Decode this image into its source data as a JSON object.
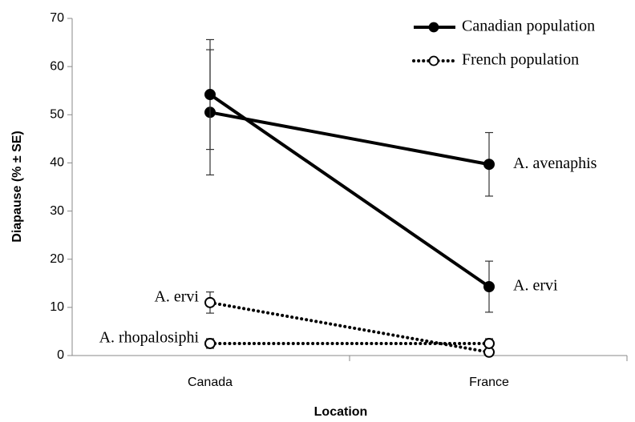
{
  "chart_data": {
    "type": "line",
    "x_label": "Location",
    "y_label": "Diapause (% ± SE)",
    "categories": [
      "Canada",
      "France"
    ],
    "ylim": [
      0,
      70
    ],
    "yticks": [
      0,
      10,
      20,
      30,
      40,
      50,
      60,
      70
    ],
    "groups": [
      {
        "name": "Canadian population",
        "color": "#000000",
        "line_style": "solid",
        "marker_fill": "filled",
        "label_side": "right",
        "series": [
          {
            "name": "A. avenaphis",
            "values": [
              50.5,
              39.7
            ],
            "errors": [
              13,
              6.6
            ]
          },
          {
            "name": "A. ervi",
            "values": [
              54.2,
              14.3
            ],
            "errors": [
              11.4,
              5.3
            ]
          }
        ]
      },
      {
        "name": "French population",
        "color": "#000000",
        "line_style": "dotted",
        "marker_fill": "open",
        "label_side": "left",
        "series": [
          {
            "name": "A. ervi",
            "values": [
              11,
              0.7
            ],
            "errors": [
              2.2,
              0.5
            ]
          },
          {
            "name": "A. rhopalosiphi",
            "values": [
              2.5,
              2.5
            ],
            "errors": [
              1,
              1
            ]
          }
        ]
      }
    ]
  }
}
